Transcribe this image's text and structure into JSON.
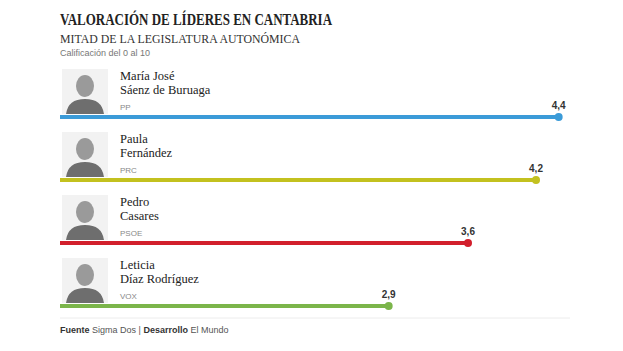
{
  "chart_data": {
    "type": "bar",
    "orientation": "horizontal",
    "title": "VALORACIÓN DE LÍDERES EN CANTABRIA",
    "subtitle": "MITAD DE LA LEGISLATURA AUTONÓMICA",
    "note": "Calificación del 0 al 10",
    "categories": [
      "María José\nSáenz de Buruaga",
      "Paula\nFernández",
      "Pedro\nCasares",
      "Leticia\nDíaz Rodríguez"
    ],
    "parties": [
      "PP",
      "PRC",
      "PSOE",
      "VOX"
    ],
    "values": [
      4.4,
      4.2,
      3.6,
      2.9
    ],
    "value_labels": [
      "4,4",
      "4,2",
      "3,6",
      "2,9"
    ],
    "colors": [
      "#3b9bd8",
      "#c3c11f",
      "#d21f2c",
      "#7bb54a"
    ],
    "xlim": [
      0,
      4.5
    ],
    "data_labels": true,
    "tick_labels": false,
    "grid": false,
    "source": [
      {
        "label": "Fuente",
        "text": "Sigma Dos"
      },
      {
        "label": "Desarrollo",
        "text": "El Mundo"
      }
    ],
    "source_separator": "|"
  }
}
